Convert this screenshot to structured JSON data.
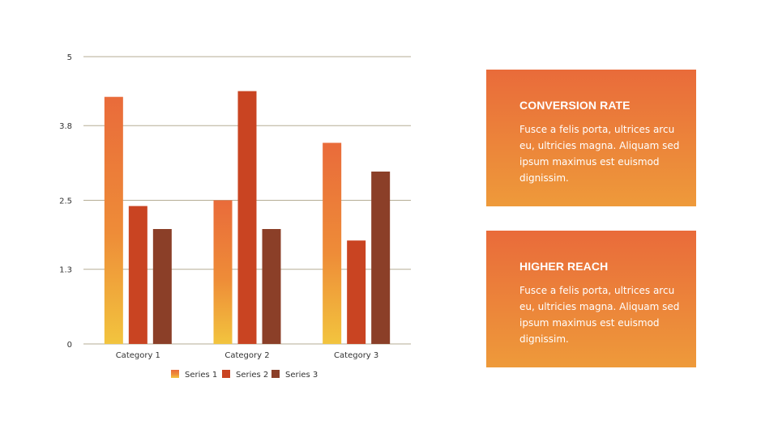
{
  "chart_data": {
    "type": "bar",
    "categories": [
      "Category 1",
      "Category 2",
      "Category 3"
    ],
    "series": [
      {
        "name": "Series 1",
        "values": [
          4.3,
          2.5,
          3.5
        ]
      },
      {
        "name": "Series 2",
        "values": [
          2.4,
          4.4,
          1.8
        ]
      },
      {
        "name": "Series 3",
        "values": [
          2.0,
          2.0,
          3.0
        ]
      }
    ],
    "yticks": [
      "0",
      "1.3",
      "2.5",
      "3.8",
      "5"
    ],
    "ylim": [
      0,
      5
    ],
    "grid": true,
    "legend_position": "bottom",
    "colors": {
      "series1_top": "#e96b3a",
      "series1_bottom": "#f2c43e",
      "series2": "#c94422",
      "series3": "#8b3f28",
      "gridline": "#b5ad95"
    }
  },
  "cards": [
    {
      "title": "CONVERSION RATE",
      "body": "Fusce a felis porta, ultrices arcu eu, ultricies magna. Aliquam sed ipsum maximus est euismod dignissim."
    },
    {
      "title": "HIGHER REACH",
      "body": "Fusce a felis porta, ultrices arcu eu, ultricies magna. Aliquam sed ipsum maximus est euismod dignissim."
    }
  ]
}
